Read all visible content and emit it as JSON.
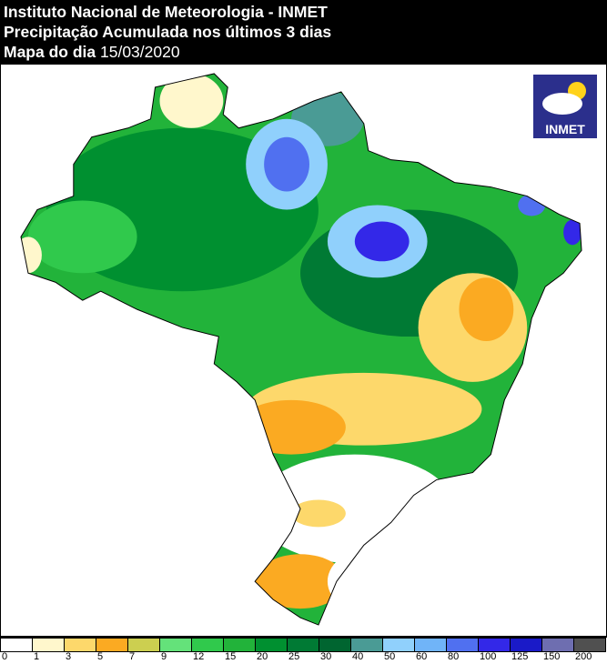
{
  "header": {
    "line1": "Instituto Nacional de Meteorologia - INMET",
    "line2": "Precipitação Acumulada nos últimos 3 dias",
    "line3_prefix": "Mapa do dia",
    "date": "15/03/2020"
  },
  "logo": {
    "text": "INMET",
    "icon": "cloud-sun-rain-icon"
  },
  "legend": {
    "labels": [
      "0",
      "1",
      "3",
      "5",
      "7",
      "9",
      "12",
      "15",
      "20",
      "25",
      "30",
      "40",
      "50",
      "60",
      "80",
      "100",
      "125",
      "150",
      "200"
    ],
    "colors": [
      "#ffffff",
      "#fff7cc",
      "#fdd86b",
      "#fbaa22",
      "#cccf50",
      "#64e27a",
      "#30c94c",
      "#22b33a",
      "#009030",
      "#007a34",
      "#006530",
      "#4a9b95",
      "#90d0fc",
      "#70b4f8",
      "#5070f0",
      "#3328e8",
      "#1a1ac8",
      "#6e6eb0",
      "#505050"
    ]
  }
}
